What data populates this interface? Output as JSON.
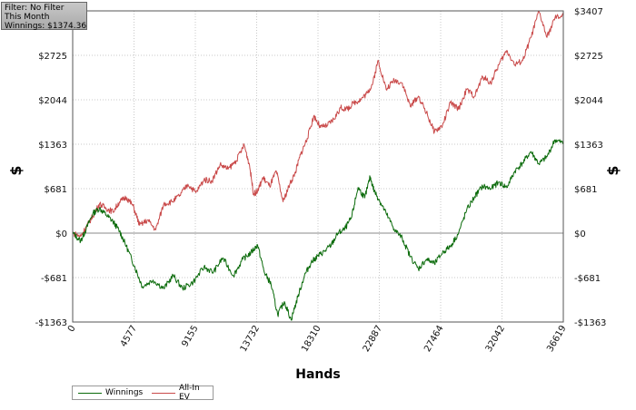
{
  "filter_box": {
    "line1": "Filter: No Filter",
    "line2": "This Month",
    "line3": "Winnings: $1374.36"
  },
  "chart_data": {
    "type": "line",
    "title": "",
    "xlabel": "Hands",
    "ylabel": "$",
    "xlim": [
      0,
      36619
    ],
    "ylim": [
      -1363,
      3407
    ],
    "x_ticks": [
      0,
      4577,
      9155,
      13732,
      18310,
      22887,
      27464,
      32042,
      36619
    ],
    "y_ticks": [
      {
        "value": 3407,
        "label": "$3407"
      },
      {
        "value": 2725,
        "label": "$2725"
      },
      {
        "value": 2044,
        "label": "$2044"
      },
      {
        "value": 1363,
        "label": "$1363"
      },
      {
        "value": 681,
        "label": "$681"
      },
      {
        "value": 0,
        "label": "$0"
      },
      {
        "value": -681,
        "label": "-$681"
      },
      {
        "value": -1363,
        "label": "-$1363"
      }
    ],
    "grid": true,
    "legend_position": "bottom-left",
    "series": [
      {
        "name": "Winnings",
        "color": "#0b6b0b",
        "x": [
          0,
          600,
          1000,
          1500,
          2000,
          2500,
          3000,
          3500,
          4000,
          4600,
          5200,
          6000,
          6800,
          7500,
          8200,
          9000,
          9800,
          10500,
          11200,
          12000,
          12700,
          13300,
          13800,
          14300,
          14800,
          15300,
          15800,
          16300,
          16800,
          17300,
          17800,
          18300,
          18800,
          19300,
          19800,
          20300,
          20800,
          21300,
          21800,
          22200,
          22500,
          22900,
          23400,
          24000,
          24600,
          25200,
          25800,
          26400,
          27000,
          27600,
          28200,
          28800,
          29400,
          30000,
          30600,
          31200,
          31800,
          32400,
          33000,
          33600,
          34200,
          34800,
          35400,
          36000,
          36619
        ],
        "y": [
          0,
          -120,
          60,
          300,
          380,
          280,
          180,
          30,
          -200,
          -500,
          -820,
          -720,
          -850,
          -650,
          -850,
          -750,
          -520,
          -600,
          -380,
          -650,
          -400,
          -300,
          -180,
          -600,
          -780,
          -1250,
          -1050,
          -1330,
          -980,
          -650,
          -450,
          -350,
          -280,
          -180,
          0,
          60,
          230,
          700,
          540,
          860,
          650,
          500,
          300,
          60,
          -80,
          -360,
          -550,
          -400,
          -470,
          -300,
          -200,
          0,
          350,
          560,
          720,
          680,
          780,
          700,
          950,
          1080,
          1250,
          1060,
          1170,
          1430,
          1374
        ]
      },
      {
        "name": "All-In EV",
        "color": "#c94a4a",
        "x": [
          0,
          600,
          1000,
          1500,
          2000,
          2500,
          3000,
          3500,
          4000,
          4500,
          5000,
          5600,
          6200,
          6800,
          7400,
          8000,
          8600,
          9200,
          9800,
          10400,
          11000,
          11600,
          12200,
          12800,
          13200,
          13500,
          13800,
          14200,
          14700,
          15200,
          15700,
          16200,
          16600,
          17000,
          17500,
          18000,
          18500,
          19000,
          19500,
          20000,
          20500,
          21000,
          21500,
          22000,
          22400,
          22800,
          23400,
          24000,
          24600,
          25200,
          25800,
          26400,
          27000,
          27600,
          28200,
          28800,
          29400,
          30000,
          30600,
          31200,
          31800,
          32400,
          33000,
          33600,
          34200,
          34800,
          35400,
          36000,
          36619
        ],
        "y": [
          0,
          -50,
          90,
          260,
          450,
          380,
          330,
          480,
          550,
          420,
          120,
          200,
          50,
          450,
          480,
          580,
          750,
          620,
          820,
          800,
          1050,
          980,
          1110,
          1350,
          1040,
          600,
          640,
          850,
          720,
          950,
          480,
          750,
          920,
          1200,
          1450,
          1800,
          1620,
          1650,
          1750,
          1920,
          1900,
          2000,
          2050,
          2150,
          2300,
          2650,
          2200,
          2350,
          2300,
          1940,
          2100,
          1850,
          1550,
          1650,
          2000,
          1900,
          2200,
          2100,
          2400,
          2300,
          2580,
          2800,
          2580,
          2650,
          3000,
          3400,
          3000,
          3300,
          3330
        ]
      }
    ]
  }
}
